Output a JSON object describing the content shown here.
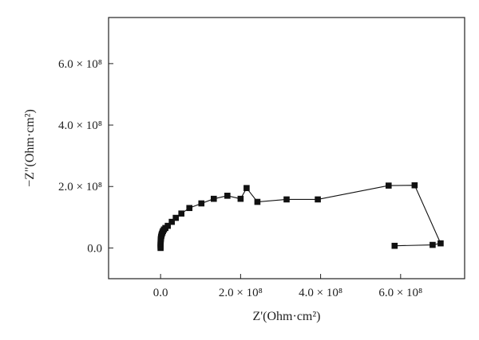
{
  "chart_data": {
    "type": "scatter",
    "xlabel": "Z'(Ohm·cm²)",
    "ylabel": "−Z\"(Ohm·cm²)",
    "xlim": [
      -130000000.0,
      760000000.0
    ],
    "ylim": [
      -100000000.0,
      750000000.0
    ],
    "xticks": [
      0,
      200000000.0,
      400000000.0,
      600000000.0
    ],
    "yticks": [
      0,
      200000000.0,
      400000000.0,
      600000000.0
    ],
    "xtick_labels": [
      "0.0",
      "2.0 × 10⁸",
      "4.0 × 10⁸",
      "6.0 × 10⁸"
    ],
    "ytick_labels": [
      "0.0",
      "2.0 × 10⁸",
      "4.0 × 10⁸",
      "6.0 × 10⁸"
    ],
    "grid": false,
    "marker": "square",
    "connected": true,
    "color": "#111111",
    "series": [
      {
        "x": [
          0.0,
          0.0,
          0.0,
          100000.0,
          200000.0,
          400000.0,
          700000.0,
          1200000.0,
          2000000.0,
          3000000.0,
          4500000.0,
          6000000.0,
          8500000.0,
          12000000.0,
          18000000.0,
          28000000.0,
          38000000.0,
          52000000.0,
          72000000.0,
          102000000.0,
          133000000.0,
          167000000.0,
          200000000.0,
          215000000.0,
          242000000.0,
          315000000.0,
          393000000.0,
          570000000.0,
          635000000.0,
          700000000.0,
          680000000.0,
          585000000.0
        ],
        "y": [
          0.0,
          5000000.0,
          10000000.0,
          15000000.0,
          20000000.0,
          25000000.0,
          30000000.0,
          35000000.0,
          40000000.0,
          45000000.0,
          50000000.0,
          55000000.0,
          60000000.0,
          65000000.0,
          72000000.0,
          85000000.0,
          98000000.0,
          112000000.0,
          130000000.0,
          145000000.0,
          160000000.0,
          170000000.0,
          160000000.0,
          195000000.0,
          150000000.0,
          158000000.0,
          158000000.0,
          203000000.0,
          204000000.0,
          15000000.0,
          10000000.0,
          7000000.0
        ]
      }
    ]
  }
}
